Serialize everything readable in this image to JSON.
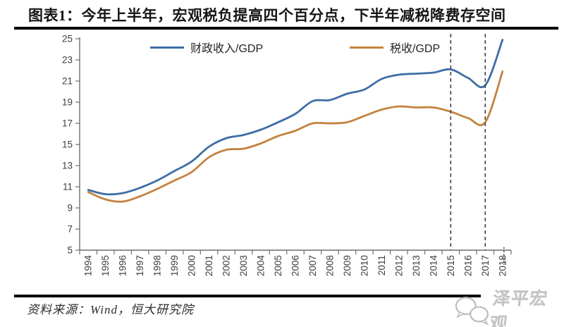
{
  "chart_data": {
    "type": "line",
    "title": "图表1：今年上半年，宏观税负提高四个百分点，下半年减税降费存空间",
    "categories": [
      "1994",
      "1995",
      "1996",
      "1997",
      "1998",
      "1999",
      "2000",
      "2001",
      "2002",
      "2003",
      "2004",
      "2005",
      "2006",
      "2007",
      "2008",
      "2009",
      "2010",
      "2011",
      "2012",
      "2013",
      "2014",
      "2015",
      "2016",
      "2017",
      "2018"
    ],
    "series": [
      {
        "name": "财政收入/GDP",
        "color": "#3D6EA5",
        "values": [
          10.7,
          10.3,
          10.4,
          10.9,
          11.6,
          12.5,
          13.4,
          14.8,
          15.6,
          15.9,
          16.4,
          17.1,
          17.9,
          19.1,
          19.2,
          19.8,
          20.2,
          21.2,
          21.6,
          21.7,
          21.8,
          22.1,
          21.3,
          20.6,
          24.9
        ]
      },
      {
        "name": "税收/GDP",
        "color": "#C4823F",
        "values": [
          10.5,
          9.8,
          9.6,
          10.1,
          10.8,
          11.6,
          12.4,
          13.8,
          14.5,
          14.6,
          15.1,
          15.8,
          16.3,
          17.0,
          17.0,
          17.1,
          17.7,
          18.3,
          18.6,
          18.5,
          18.5,
          18.1,
          17.5,
          17.1,
          21.9
        ]
      }
    ],
    "ylim": [
      5,
      25
    ],
    "ytick_labels": [
      "5",
      "7",
      "9",
      "11",
      "13",
      "15",
      "17",
      "19",
      "21",
      "23",
      "25"
    ],
    "xlabel": "",
    "ylabel": "",
    "grid": false,
    "legend_position": "top-inside",
    "annotations": {
      "dashed_vlines": [
        "2015",
        "2017"
      ],
      "dotted_axis_mark": "2018"
    },
    "axis_color": "#6e6e6e",
    "tick_label_color": "#3f3f3f",
    "dash_color": "#3f3f3f"
  },
  "footer": {
    "source": "资料来源：Wind，恒大研究院",
    "watermark": "泽平宏观"
  }
}
